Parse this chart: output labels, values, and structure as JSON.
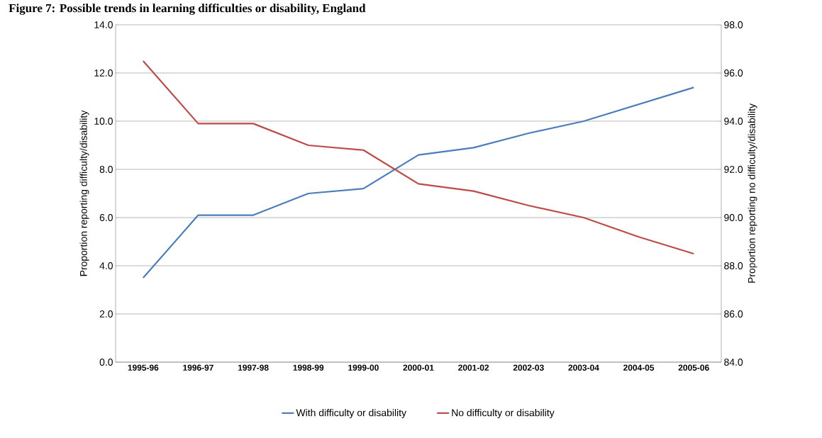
{
  "chart_data": {
    "type": "line",
    "title": "Figure 7: Possible trends in learning difficulties or disability, England",
    "ylabel": "Proportion reporting difficulty/disability",
    "y2label": "Proportion reporting no difficulty/disability",
    "categories": [
      "1995-96",
      "1996-97",
      "1997-98",
      "1998-99",
      "1999-00",
      "2000-01",
      "2001-02",
      "2002-03",
      "2003-04",
      "2004-05",
      "2005-06"
    ],
    "series": [
      {
        "name": "With difficulty or disability",
        "color": "#4a7ebb",
        "values": [
          3.5,
          6.1,
          6.1,
          7.0,
          7.2,
          8.6,
          8.9,
          9.5,
          10.0,
          10.7,
          11.4
        ]
      },
      {
        "name": "No difficulty or disability",
        "color": "#be4b48",
        "axis": "y2",
        "values": [
          96.5,
          93.9,
          93.9,
          93.0,
          92.8,
          91.4,
          91.1,
          90.5,
          90.0,
          89.2,
          88.5
        ]
      }
    ],
    "ylim": [
      0,
      14
    ],
    "yticks": [
      {
        "value": 0,
        "label": "0.0"
      },
      {
        "value": 2,
        "label": "2.0"
      },
      {
        "value": 4,
        "label": "4.0"
      },
      {
        "value": 6,
        "label": "6.0"
      },
      {
        "value": 8,
        "label": "8.0"
      },
      {
        "value": 10,
        "label": "10.0"
      },
      {
        "value": 12,
        "label": "12.0"
      },
      {
        "value": 14,
        "label": "14.0"
      }
    ],
    "y2lim": [
      84,
      98
    ],
    "y2ticks": [
      {
        "value": 84,
        "label": "84.0"
      },
      {
        "value": 86,
        "label": "86.0"
      },
      {
        "value": 88,
        "label": "88.0"
      },
      {
        "value": 90,
        "label": "90.0"
      },
      {
        "value": 92,
        "label": "92.0"
      },
      {
        "value": 94,
        "label": "94.0"
      },
      {
        "value": 96,
        "label": "96.0"
      },
      {
        "value": 98,
        "label": "98.0"
      }
    ],
    "grid": "y",
    "legend": "bottom",
    "marker": "none",
    "line_style": "solid"
  }
}
